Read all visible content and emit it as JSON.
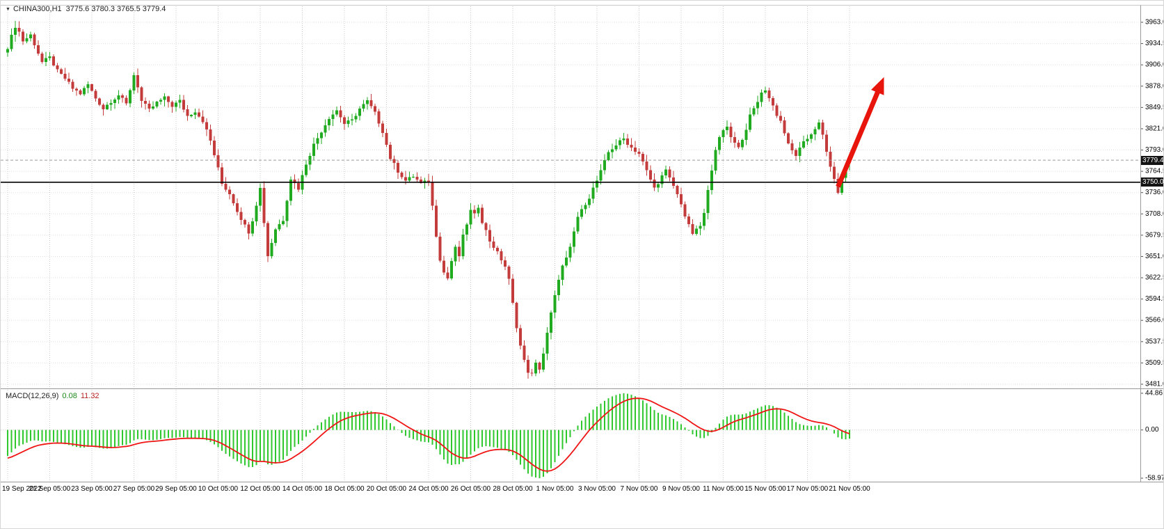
{
  "header": {
    "dropdown_glyph": "▼",
    "symbol_tf": "CHINA300,H1",
    "ohlc": "3775.6 3780.3 3765.5 3779.4"
  },
  "macd_header": {
    "label": "MACD(12,26,9)",
    "main_value": "0.08",
    "signal_value": "11.32"
  },
  "price_scale": {
    "bid_badge": "3779.4",
    "level_badge": "3750.0"
  },
  "colors": {
    "bull": "#1faa1f",
    "bear": "#c43b3b",
    "grid": "#c9c9c9",
    "grid_h": "#dedede",
    "histogram": "#2ec72e",
    "signal": "#f01515",
    "level_line": "#000000",
    "bid_line": "#9a9a9a",
    "arrow": "#e8150d",
    "badge_bg": "#141414",
    "badge_text": "#ffffff",
    "axis_text": "#000000",
    "separator": "#9a9a9a",
    "background": "#ffffff"
  },
  "chart_data": [
    {
      "type": "candlestick",
      "title": "CHINA300,H1",
      "symbol": "CHINA300",
      "timeframe": "H1",
      "grid": true,
      "ylim": [
        3481.0,
        3963.0
      ],
      "y_ticks": [
        "3963.0",
        "3934.5",
        "3906.0",
        "3878.0",
        "3849.5",
        "3821.0",
        "3793.0",
        "3764.5",
        "3736.0",
        "3708.0",
        "3679.5",
        "3651.0",
        "3622.5",
        "3594.5",
        "3566.0",
        "3537.5",
        "3509.5",
        "3481.0"
      ],
      "x_labels": [
        "19 Sep 2022",
        "21 Sep 05:00",
        "23 Sep 05:00",
        "27 Sep 05:00",
        "29 Sep 05:00",
        "10 Oct 05:00",
        "12 Oct 05:00",
        "14 Oct 05:00",
        "18 Oct 05:00",
        "20 Oct 05:00",
        "24 Oct 05:00",
        "26 Oct 05:00",
        "28 Oct 05:00",
        "1 Nov 05:00",
        "3 Nov 05:00",
        "7 Nov 05:00",
        "9 Nov 05:00",
        "11 Nov 05:00",
        "15 Nov 05:00",
        "17 Nov 05:00",
        "21 Nov 05:00"
      ],
      "bars_per_label_interval": 11,
      "last_candle": {
        "open": 3775.6,
        "high": 3780.3,
        "low": 3765.5,
        "close": 3779.4
      },
      "price_levels": [
        {
          "label": "3750.0",
          "value": 3750.0,
          "type": "horizontal_line"
        },
        {
          "label": "3779.4",
          "value": 3779.4,
          "type": "bid_price"
        }
      ],
      "annotation_arrow": {
        "from_bar": 217,
        "from_price": 3744,
        "to_bar": 229,
        "to_price": 3890
      },
      "close_waypoints_format": "[bar_index, close_price] estimated H1 close path read from chart",
      "close_waypoints": [
        [
          0,
          3930
        ],
        [
          1,
          3944
        ],
        [
          2,
          3958
        ],
        [
          3,
          3950
        ],
        [
          4,
          3938
        ],
        [
          6,
          3946
        ],
        [
          9,
          3910
        ],
        [
          11,
          3916
        ],
        [
          13,
          3898
        ],
        [
          15,
          3888
        ],
        [
          17,
          3875
        ],
        [
          19,
          3868
        ],
        [
          21,
          3880
        ],
        [
          23,
          3862
        ],
        [
          25,
          3848
        ],
        [
          27,
          3858
        ],
        [
          29,
          3866
        ],
        [
          31,
          3854
        ],
        [
          33,
          3893
        ],
        [
          34,
          3878
        ],
        [
          35,
          3858
        ],
        [
          37,
          3846
        ],
        [
          39,
          3856
        ],
        [
          41,
          3862
        ],
        [
          43,
          3852
        ],
        [
          45,
          3858
        ],
        [
          47,
          3838
        ],
        [
          49,
          3845
        ],
        [
          51,
          3832
        ],
        [
          53,
          3805
        ],
        [
          55,
          3768
        ],
        [
          56,
          3748
        ],
        [
          58,
          3735
        ],
        [
          60,
          3712
        ],
        [
          62,
          3692
        ],
        [
          63,
          3684
        ],
        [
          64,
          3700
        ],
        [
          66,
          3742
        ],
        [
          68,
          3652
        ],
        [
          70,
          3688
        ],
        [
          72,
          3700
        ],
        [
          74,
          3755
        ],
        [
          76,
          3742
        ],
        [
          78,
          3775
        ],
        [
          80,
          3800
        ],
        [
          82,
          3818
        ],
        [
          84,
          3836
        ],
        [
          86,
          3846
        ],
        [
          88,
          3828
        ],
        [
          90,
          3832
        ],
        [
          92,
          3848
        ],
        [
          94,
          3858
        ],
        [
          96,
          3842
        ],
        [
          98,
          3818
        ],
        [
          100,
          3782
        ],
        [
          102,
          3765
        ],
        [
          104,
          3752
        ],
        [
          106,
          3758
        ],
        [
          108,
          3748
        ],
        [
          110,
          3752
        ],
        [
          111,
          3718
        ],
        [
          112,
          3680
        ],
        [
          113,
          3648
        ],
        [
          114,
          3630
        ],
        [
          115,
          3622
        ],
        [
          116,
          3645
        ],
        [
          117,
          3662
        ],
        [
          118,
          3652
        ],
        [
          119,
          3678
        ],
        [
          120,
          3695
        ],
        [
          121,
          3712
        ],
        [
          122,
          3706
        ],
        [
          123,
          3718
        ],
        [
          124,
          3698
        ],
        [
          126,
          3672
        ],
        [
          128,
          3656
        ],
        [
          130,
          3638
        ],
        [
          131,
          3620
        ],
        [
          132,
          3588
        ],
        [
          133,
          3558
        ],
        [
          134,
          3532
        ],
        [
          135,
          3512
        ],
        [
          136,
          3498
        ],
        [
          137,
          3494
        ],
        [
          138,
          3508
        ],
        [
          139,
          3502
        ],
        [
          140,
          3522
        ],
        [
          141,
          3548
        ],
        [
          142,
          3575
        ],
        [
          143,
          3598
        ],
        [
          144,
          3622
        ],
        [
          145,
          3638
        ],
        [
          146,
          3648
        ],
        [
          147,
          3662
        ],
        [
          148,
          3684
        ],
        [
          149,
          3704
        ],
        [
          150,
          3712
        ],
        [
          151,
          3722
        ],
        [
          152,
          3730
        ],
        [
          153,
          3742
        ],
        [
          154,
          3752
        ],
        [
          155,
          3764
        ],
        [
          157,
          3790
        ],
        [
          159,
          3800
        ],
        [
          161,
          3808
        ],
        [
          163,
          3796
        ],
        [
          165,
          3788
        ],
        [
          167,
          3765
        ],
        [
          169,
          3742
        ],
        [
          171,
          3758
        ],
        [
          172,
          3765
        ],
        [
          174,
          3745
        ],
        [
          176,
          3722
        ],
        [
          177,
          3705
        ],
        [
          178,
          3692
        ],
        [
          179,
          3682
        ],
        [
          180,
          3686
        ],
        [
          181,
          3692
        ],
        [
          182,
          3708
        ],
        [
          183,
          3738
        ],
        [
          184,
          3768
        ],
        [
          185,
          3795
        ],
        [
          186,
          3808
        ],
        [
          187,
          3818
        ],
        [
          188,
          3824
        ],
        [
          189,
          3812
        ],
        [
          190,
          3802
        ],
        [
          191,
          3798
        ],
        [
          192,
          3806
        ],
        [
          193,
          3822
        ],
        [
          194,
          3838
        ],
        [
          195,
          3848
        ],
        [
          196,
          3858
        ],
        [
          197,
          3868
        ],
        [
          198,
          3874
        ],
        [
          199,
          3862
        ],
        [
          200,
          3852
        ],
        [
          201,
          3840
        ],
        [
          202,
          3832
        ],
        [
          203,
          3816
        ],
        [
          204,
          3800
        ],
        [
          205,
          3792
        ],
        [
          206,
          3786
        ],
        [
          207,
          3794
        ],
        [
          208,
          3802
        ],
        [
          209,
          3808
        ],
        [
          210,
          3815
        ],
        [
          211,
          3822
        ],
        [
          212,
          3828
        ],
        [
          213,
          3812
        ],
        [
          214,
          3790
        ],
        [
          215,
          3772
        ],
        [
          216,
          3752
        ],
        [
          217,
          3738
        ],
        [
          218,
          3756
        ],
        [
          219,
          3768
        ],
        [
          220,
          3779.4
        ]
      ]
    },
    {
      "type": "bar",
      "title": "MACD(12,26,9)",
      "params": {
        "fast": 12,
        "slow": 26,
        "signal": 9
      },
      "current_main": 0.08,
      "current_signal": 11.32,
      "y_ticks": [
        "44.86",
        "0.00",
        "-58.97"
      ],
      "histogram_legend": "MACD main (green bars)",
      "line_legend": "signal EMA9 (red line)"
    }
  ]
}
